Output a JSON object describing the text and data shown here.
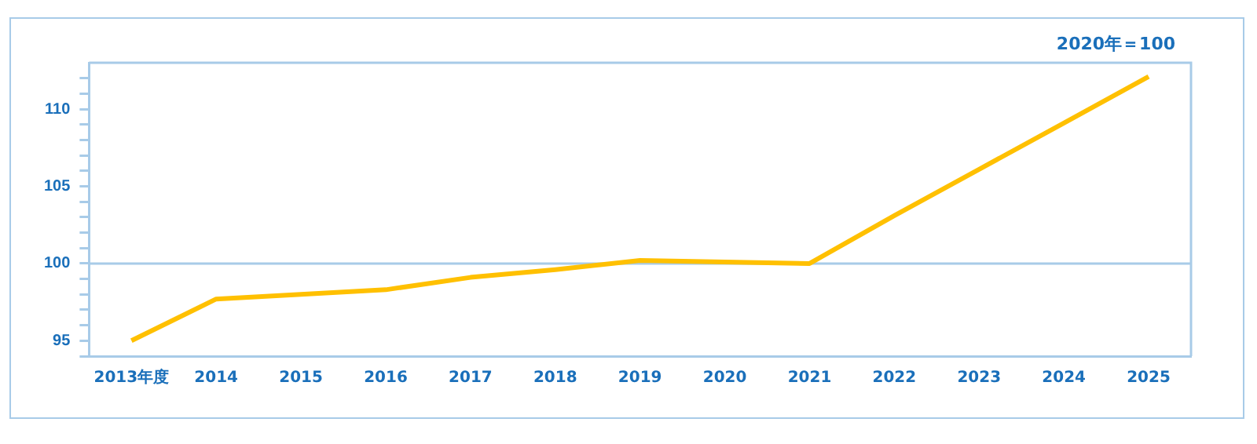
{
  "chart_data": {
    "type": "line",
    "annotations": [
      "2020年＝100"
    ],
    "categories": [
      "2013年度",
      "2014",
      "2015",
      "2016",
      "2017",
      "2018",
      "2019",
      "2020",
      "2021",
      "2022",
      "2023",
      "2024",
      "2025"
    ],
    "series": [
      {
        "color": "#ffc000",
        "values": [
          95.0,
          97.7,
          98.0,
          98.3,
          99.1,
          99.6,
          100.2,
          100.1,
          100.0,
          103.1,
          106.1,
          109.1,
          112.1
        ]
      }
    ],
    "ylim": [
      94,
      113
    ],
    "yticks": [
      {
        "value": 94,
        "label": null
      },
      95,
      {
        "value": 96,
        "label": null
      },
      {
        "value": 97,
        "label": null
      },
      {
        "value": 98,
        "label": null
      },
      {
        "value": 99,
        "label": null
      },
      100,
      {
        "value": 101,
        "label": null
      },
      {
        "value": 102,
        "label": null
      },
      {
        "value": 103,
        "label": null
      },
      {
        "value": 104,
        "label": null
      },
      105,
      {
        "value": 106,
        "label": null
      },
      {
        "value": 107,
        "label": null
      },
      {
        "value": 108,
        "label": null
      },
      {
        "value": 109,
        "label": null
      },
      110,
      {
        "value": 111,
        "label": null
      },
      {
        "value": 112,
        "label": null
      }
    ],
    "ref_lines": [
      {
        "axis": "y",
        "value": 100,
        "color": "#a8cbe8"
      }
    ],
    "grid": false,
    "legend": false,
    "marker": "none",
    "line_style": "solid"
  }
}
